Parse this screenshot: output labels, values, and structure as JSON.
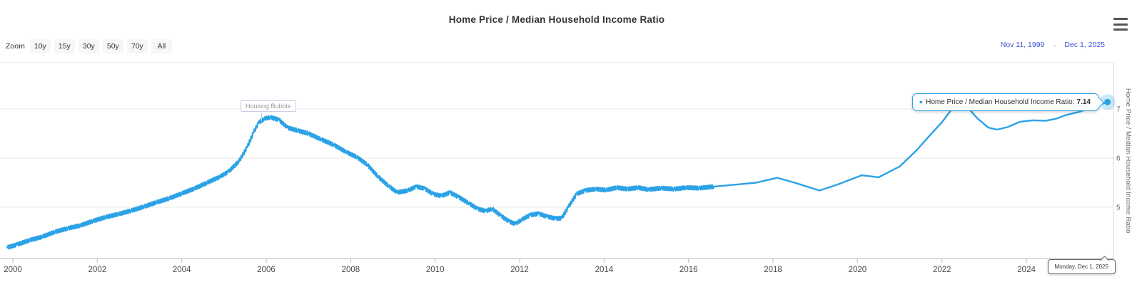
{
  "header": {
    "title": "Home Price / Median Household Income Ratio"
  },
  "toolbar": {
    "zoom_label": "Zoom",
    "buttons": [
      "10y",
      "15y",
      "30y",
      "50y",
      "70y",
      "All"
    ],
    "range_from": "Nov 11, 1999",
    "range_arrow": "→",
    "range_to": "Dec 1, 2025"
  },
  "tooltip": {
    "bullet": "●",
    "label": "Home Price / Median Household Income Ratio:",
    "value": "7.14"
  },
  "date_label": "Monday, Dec 1, 2025",
  "annotation_label": "Housing Bubble",
  "colors": {
    "series": "#2BA2E6",
    "range_text": "#4251d6",
    "grid": "#e9e9e9",
    "axis_bottom": "#b8b8b8",
    "axis_right": "#d8d8d8",
    "tick": "#bbbbbb"
  },
  "chart_data": {
    "type": "line",
    "title": "Home Price / Median Household Income Ratio",
    "yaxis_title": "Home Price / Median Household Income Ratio",
    "xlabel": "",
    "legend": "none",
    "grid": "horizontal",
    "x_ticks": [
      2000,
      2002,
      2004,
      2006,
      2008,
      2010,
      2012,
      2014,
      2016,
      2018,
      2020,
      2022,
      2024
    ],
    "y_ticks": [
      5,
      6,
      7
    ],
    "xlim": [
      1999.87,
      2025.95
    ],
    "ylim": [
      3.95,
      8.05
    ],
    "noise_texture": {
      "amplitude": 0.035,
      "until_year": 2016.3,
      "step_years": 0.02
    },
    "annotations": [
      {
        "label": "Housing Bubble",
        "x": 2005.86,
        "y": 6.8
      }
    ],
    "last_point": {
      "date": "Monday, Dec 1, 2025",
      "value": 7.14
    },
    "series": [
      {
        "name": "Home Price / Median Household Income Ratio",
        "color": "#2BA2E6",
        "points": [
          [
            1999.87,
            4.18
          ],
          [
            2000.1,
            4.24
          ],
          [
            2000.4,
            4.33
          ],
          [
            2000.7,
            4.4
          ],
          [
            2001.0,
            4.5
          ],
          [
            2001.3,
            4.57
          ],
          [
            2001.6,
            4.63
          ],
          [
            2001.9,
            4.72
          ],
          [
            2002.2,
            4.8
          ],
          [
            2002.5,
            4.86
          ],
          [
            2002.8,
            4.93
          ],
          [
            2003.1,
            5.01
          ],
          [
            2003.4,
            5.1
          ],
          [
            2003.7,
            5.18
          ],
          [
            2004.0,
            5.28
          ],
          [
            2004.3,
            5.38
          ],
          [
            2004.6,
            5.5
          ],
          [
            2004.9,
            5.62
          ],
          [
            2005.1,
            5.72
          ],
          [
            2005.35,
            5.93
          ],
          [
            2005.55,
            6.22
          ],
          [
            2005.7,
            6.52
          ],
          [
            2005.82,
            6.72
          ],
          [
            2005.95,
            6.8
          ],
          [
            2006.1,
            6.83
          ],
          [
            2006.3,
            6.78
          ],
          [
            2006.5,
            6.62
          ],
          [
            2006.75,
            6.56
          ],
          [
            2007.0,
            6.5
          ],
          [
            2007.3,
            6.38
          ],
          [
            2007.6,
            6.27
          ],
          [
            2007.9,
            6.12
          ],
          [
            2008.15,
            6.02
          ],
          [
            2008.4,
            5.86
          ],
          [
            2008.65,
            5.62
          ],
          [
            2008.9,
            5.43
          ],
          [
            2009.1,
            5.3
          ],
          [
            2009.35,
            5.34
          ],
          [
            2009.55,
            5.42
          ],
          [
            2009.75,
            5.38
          ],
          [
            2009.95,
            5.27
          ],
          [
            2010.15,
            5.23
          ],
          [
            2010.35,
            5.3
          ],
          [
            2010.55,
            5.21
          ],
          [
            2010.8,
            5.08
          ],
          [
            2011.0,
            4.97
          ],
          [
            2011.2,
            4.92
          ],
          [
            2011.35,
            4.97
          ],
          [
            2011.55,
            4.83
          ],
          [
            2011.75,
            4.71
          ],
          [
            2011.9,
            4.66
          ],
          [
            2012.05,
            4.75
          ],
          [
            2012.25,
            4.84
          ],
          [
            2012.45,
            4.87
          ],
          [
            2012.65,
            4.81
          ],
          [
            2012.85,
            4.77
          ],
          [
            2013.0,
            4.78
          ],
          [
            2013.15,
            5.0
          ],
          [
            2013.35,
            5.27
          ],
          [
            2013.55,
            5.34
          ],
          [
            2013.8,
            5.37
          ],
          [
            2014.05,
            5.35
          ],
          [
            2014.3,
            5.4
          ],
          [
            2014.55,
            5.37
          ],
          [
            2014.8,
            5.4
          ],
          [
            2015.05,
            5.36
          ],
          [
            2015.35,
            5.39
          ],
          [
            2015.65,
            5.37
          ],
          [
            2015.95,
            5.4
          ],
          [
            2016.25,
            5.39
          ],
          [
            2016.6,
            5.42
          ],
          [
            2017.1,
            5.46
          ],
          [
            2017.6,
            5.5
          ],
          [
            2018.1,
            5.6
          ],
          [
            2018.55,
            5.49
          ],
          [
            2019.1,
            5.34
          ],
          [
            2019.55,
            5.47
          ],
          [
            2020.1,
            5.65
          ],
          [
            2020.5,
            5.61
          ],
          [
            2021.0,
            5.83
          ],
          [
            2021.4,
            6.16
          ],
          [
            2021.7,
            6.45
          ],
          [
            2022.0,
            6.73
          ],
          [
            2022.2,
            6.96
          ],
          [
            2022.4,
            7.1
          ],
          [
            2022.6,
            7.04
          ],
          [
            2022.85,
            6.8
          ],
          [
            2023.1,
            6.62
          ],
          [
            2023.3,
            6.58
          ],
          [
            2023.55,
            6.63
          ],
          [
            2023.85,
            6.74
          ],
          [
            2024.15,
            6.77
          ],
          [
            2024.45,
            6.76
          ],
          [
            2024.7,
            6.8
          ],
          [
            2024.95,
            6.88
          ],
          [
            2025.25,
            6.94
          ],
          [
            2025.55,
            7.03
          ],
          [
            2025.78,
            7.1
          ],
          [
            2025.92,
            7.14
          ]
        ]
      }
    ]
  }
}
